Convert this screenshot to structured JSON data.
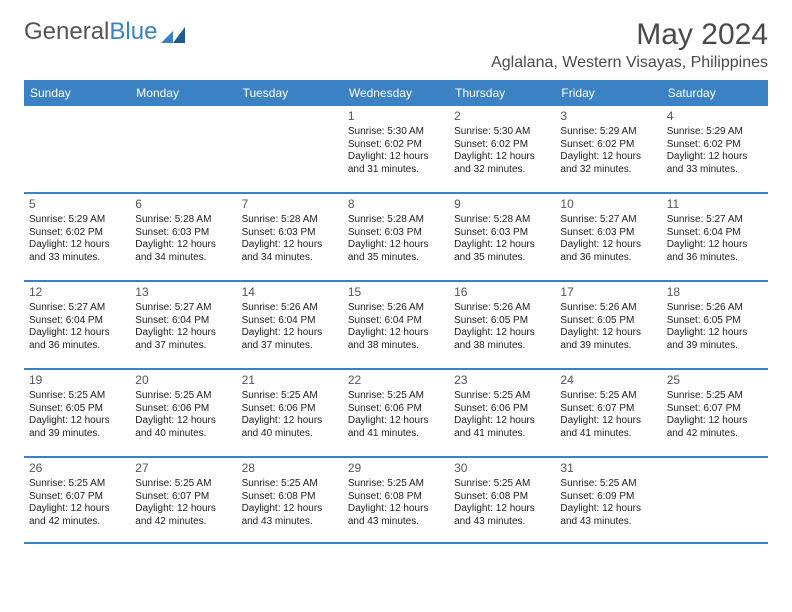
{
  "logo": {
    "text_gray": "General",
    "text_blue": "Blue"
  },
  "title": "May 2024",
  "location": "Aglalana, Western Visayas, Philippines",
  "colors": {
    "header_bg": "#3b82c4",
    "header_text": "#ffffff",
    "border": "#3b82c4",
    "text": "#222222",
    "day_num": "#555555",
    "logo_gray": "#555555",
    "logo_blue": "#3b82c4",
    "title_color": "#4a4a4a",
    "background": "#ffffff"
  },
  "day_headers": [
    "Sunday",
    "Monday",
    "Tuesday",
    "Wednesday",
    "Thursday",
    "Friday",
    "Saturday"
  ],
  "weeks": [
    [
      null,
      null,
      null,
      {
        "n": "1",
        "sr": "5:30 AM",
        "ss": "6:02 PM",
        "dl": "12 hours and 31 minutes."
      },
      {
        "n": "2",
        "sr": "5:30 AM",
        "ss": "6:02 PM",
        "dl": "12 hours and 32 minutes."
      },
      {
        "n": "3",
        "sr": "5:29 AM",
        "ss": "6:02 PM",
        "dl": "12 hours and 32 minutes."
      },
      {
        "n": "4",
        "sr": "5:29 AM",
        "ss": "6:02 PM",
        "dl": "12 hours and 33 minutes."
      }
    ],
    [
      {
        "n": "5",
        "sr": "5:29 AM",
        "ss": "6:02 PM",
        "dl": "12 hours and 33 minutes."
      },
      {
        "n": "6",
        "sr": "5:28 AM",
        "ss": "6:03 PM",
        "dl": "12 hours and 34 minutes."
      },
      {
        "n": "7",
        "sr": "5:28 AM",
        "ss": "6:03 PM",
        "dl": "12 hours and 34 minutes."
      },
      {
        "n": "8",
        "sr": "5:28 AM",
        "ss": "6:03 PM",
        "dl": "12 hours and 35 minutes."
      },
      {
        "n": "9",
        "sr": "5:28 AM",
        "ss": "6:03 PM",
        "dl": "12 hours and 35 minutes."
      },
      {
        "n": "10",
        "sr": "5:27 AM",
        "ss": "6:03 PM",
        "dl": "12 hours and 36 minutes."
      },
      {
        "n": "11",
        "sr": "5:27 AM",
        "ss": "6:04 PM",
        "dl": "12 hours and 36 minutes."
      }
    ],
    [
      {
        "n": "12",
        "sr": "5:27 AM",
        "ss": "6:04 PM",
        "dl": "12 hours and 36 minutes."
      },
      {
        "n": "13",
        "sr": "5:27 AM",
        "ss": "6:04 PM",
        "dl": "12 hours and 37 minutes."
      },
      {
        "n": "14",
        "sr": "5:26 AM",
        "ss": "6:04 PM",
        "dl": "12 hours and 37 minutes."
      },
      {
        "n": "15",
        "sr": "5:26 AM",
        "ss": "6:04 PM",
        "dl": "12 hours and 38 minutes."
      },
      {
        "n": "16",
        "sr": "5:26 AM",
        "ss": "6:05 PM",
        "dl": "12 hours and 38 minutes."
      },
      {
        "n": "17",
        "sr": "5:26 AM",
        "ss": "6:05 PM",
        "dl": "12 hours and 39 minutes."
      },
      {
        "n": "18",
        "sr": "5:26 AM",
        "ss": "6:05 PM",
        "dl": "12 hours and 39 minutes."
      }
    ],
    [
      {
        "n": "19",
        "sr": "5:25 AM",
        "ss": "6:05 PM",
        "dl": "12 hours and 39 minutes."
      },
      {
        "n": "20",
        "sr": "5:25 AM",
        "ss": "6:06 PM",
        "dl": "12 hours and 40 minutes."
      },
      {
        "n": "21",
        "sr": "5:25 AM",
        "ss": "6:06 PM",
        "dl": "12 hours and 40 minutes."
      },
      {
        "n": "22",
        "sr": "5:25 AM",
        "ss": "6:06 PM",
        "dl": "12 hours and 41 minutes."
      },
      {
        "n": "23",
        "sr": "5:25 AM",
        "ss": "6:06 PM",
        "dl": "12 hours and 41 minutes."
      },
      {
        "n": "24",
        "sr": "5:25 AM",
        "ss": "6:07 PM",
        "dl": "12 hours and 41 minutes."
      },
      {
        "n": "25",
        "sr": "5:25 AM",
        "ss": "6:07 PM",
        "dl": "12 hours and 42 minutes."
      }
    ],
    [
      {
        "n": "26",
        "sr": "5:25 AM",
        "ss": "6:07 PM",
        "dl": "12 hours and 42 minutes."
      },
      {
        "n": "27",
        "sr": "5:25 AM",
        "ss": "6:07 PM",
        "dl": "12 hours and 42 minutes."
      },
      {
        "n": "28",
        "sr": "5:25 AM",
        "ss": "6:08 PM",
        "dl": "12 hours and 43 minutes."
      },
      {
        "n": "29",
        "sr": "5:25 AM",
        "ss": "6:08 PM",
        "dl": "12 hours and 43 minutes."
      },
      {
        "n": "30",
        "sr": "5:25 AM",
        "ss": "6:08 PM",
        "dl": "12 hours and 43 minutes."
      },
      {
        "n": "31",
        "sr": "5:25 AM",
        "ss": "6:09 PM",
        "dl": "12 hours and 43 minutes."
      },
      null
    ]
  ],
  "labels": {
    "sunrise": "Sunrise: ",
    "sunset": "Sunset: ",
    "daylight": "Daylight: "
  }
}
